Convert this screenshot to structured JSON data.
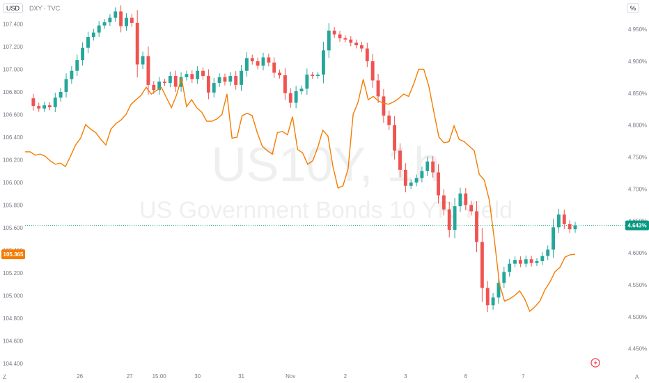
{
  "header": {
    "currency_tag": "USD",
    "symbol_info": "DXY · TVC",
    "right_unit_tag": "%",
    "bottom_left_tag": "Z",
    "bottom_right_tag": "A"
  },
  "watermark": {
    "ticker": "US10Y, 1h",
    "name": "US Government Bonds 10 YR Yield"
  },
  "chart_data": {
    "type": "line",
    "title": "",
    "x_ticks": [
      "26",
      "27",
      "15:00",
      "30",
      "31",
      "Nov",
      "2",
      "3",
      "6",
      "7"
    ],
    "left_axis": {
      "label": "USD",
      "range": [
        104.35,
        107.55
      ],
      "ticks": [
        104.4,
        104.6,
        104.8,
        105.0,
        105.2,
        105.4,
        105.6,
        105.8,
        106.0,
        106.2,
        106.4,
        106.6,
        106.8,
        107.0,
        107.2,
        107.4
      ],
      "tick_labels": [
        "104.400",
        "104.600",
        "104.800",
        "105.000",
        "105.200",
        "105.400",
        "105.600",
        "105.800",
        "106.000",
        "106.200",
        "106.400",
        "106.600",
        "106.800",
        "107.000",
        "107.200",
        "107.400"
      ]
    },
    "right_axis": {
      "label": "%",
      "range": [
        4.418,
        4.985
      ],
      "ticks": [
        4.45,
        4.5,
        4.55,
        4.6,
        4.65,
        4.7,
        4.75,
        4.8,
        4.85,
        4.9,
        4.95
      ],
      "tick_labels": [
        "4.450%",
        "4.500%",
        "4.550%",
        "4.600%",
        "4.650%",
        "4.700%",
        "4.750%",
        "4.800%",
        "4.850%",
        "4.900%",
        "4.950%"
      ]
    },
    "last_price_labels": {
      "dxy": "105.365",
      "us10y": "4.643%"
    },
    "colors": {
      "up": "#26a69a",
      "down": "#ef5350",
      "dxy_line": "#f57c00",
      "last_price_bg": "#089981",
      "dxy_label_bg": "#f57c00"
    },
    "series": [
      {
        "name": "US10Y",
        "kind": "candlestick",
        "axis": "right",
        "close_path": [
          4.842,
          4.83,
          4.826,
          4.831,
          4.828,
          4.843,
          4.852,
          4.872,
          4.885,
          4.902,
          4.921,
          4.938,
          4.945,
          4.956,
          4.961,
          4.968,
          4.978,
          4.955,
          4.968,
          4.96,
          4.895,
          4.908,
          4.863,
          4.855,
          4.868,
          4.866,
          4.877,
          4.86,
          4.875,
          4.88,
          4.872,
          4.885,
          4.877,
          4.851,
          4.866,
          4.875,
          4.868,
          4.877,
          4.863,
          4.885,
          4.905,
          4.9,
          4.893,
          4.906,
          4.898,
          4.882,
          4.878,
          4.85,
          4.835,
          4.853,
          4.857,
          4.879,
          4.877,
          4.879,
          4.917,
          4.948,
          4.942,
          4.936,
          4.934,
          4.929,
          4.925,
          4.92,
          4.9,
          4.87,
          4.845,
          4.815,
          4.8,
          4.76,
          4.73,
          4.705,
          4.71,
          4.717,
          4.728,
          4.743,
          4.726,
          4.69,
          4.668,
          4.636,
          4.673,
          4.693,
          4.675,
          4.665,
          4.617,
          4.545,
          4.518,
          4.53,
          4.553,
          4.57,
          4.583,
          4.589,
          4.583,
          4.59,
          4.584,
          4.587,
          4.595,
          4.605,
          4.64,
          4.66,
          4.645,
          4.637,
          4.643
        ]
      },
      {
        "name": "DXY",
        "kind": "line",
        "axis": "left",
        "values": [
          106.27,
          106.27,
          106.24,
          106.25,
          106.23,
          106.19,
          106.16,
          106.17,
          106.14,
          106.23,
          106.33,
          106.39,
          106.51,
          106.47,
          106.44,
          106.38,
          106.33,
          106.47,
          106.52,
          106.55,
          106.6,
          106.69,
          106.73,
          106.77,
          106.84,
          106.78,
          106.81,
          106.84,
          106.75,
          106.66,
          106.77,
          106.92,
          106.67,
          106.73,
          106.66,
          106.62,
          106.54,
          106.54,
          106.56,
          106.6,
          106.78,
          106.39,
          106.4,
          106.59,
          106.61,
          106.59,
          106.44,
          106.32,
          106.28,
          106.25,
          106.44,
          106.45,
          106.42,
          106.58,
          106.29,
          106.26,
          106.16,
          106.19,
          106.31,
          106.46,
          106.41,
          106.14,
          105.95,
          105.97,
          106.12,
          106.6,
          106.71,
          106.91,
          106.73,
          106.76,
          106.72,
          106.7,
          106.69,
          106.71,
          106.74,
          106.78,
          106.76,
          106.87,
          107.0,
          107.0,
          106.85,
          106.62,
          106.4,
          106.35,
          106.36,
          106.5,
          106.38,
          106.36,
          106.32,
          106.28,
          106.07,
          106.02,
          105.84,
          105.49,
          105.1,
          104.95,
          104.97,
          105.0,
          105.04,
          104.97,
          104.86,
          104.9,
          104.95,
          105.05,
          105.12,
          105.21,
          105.25,
          105.34,
          105.36,
          105.365
        ]
      }
    ],
    "grid": false,
    "legend": "none",
    "lightning_icon": "lightning-icon"
  }
}
